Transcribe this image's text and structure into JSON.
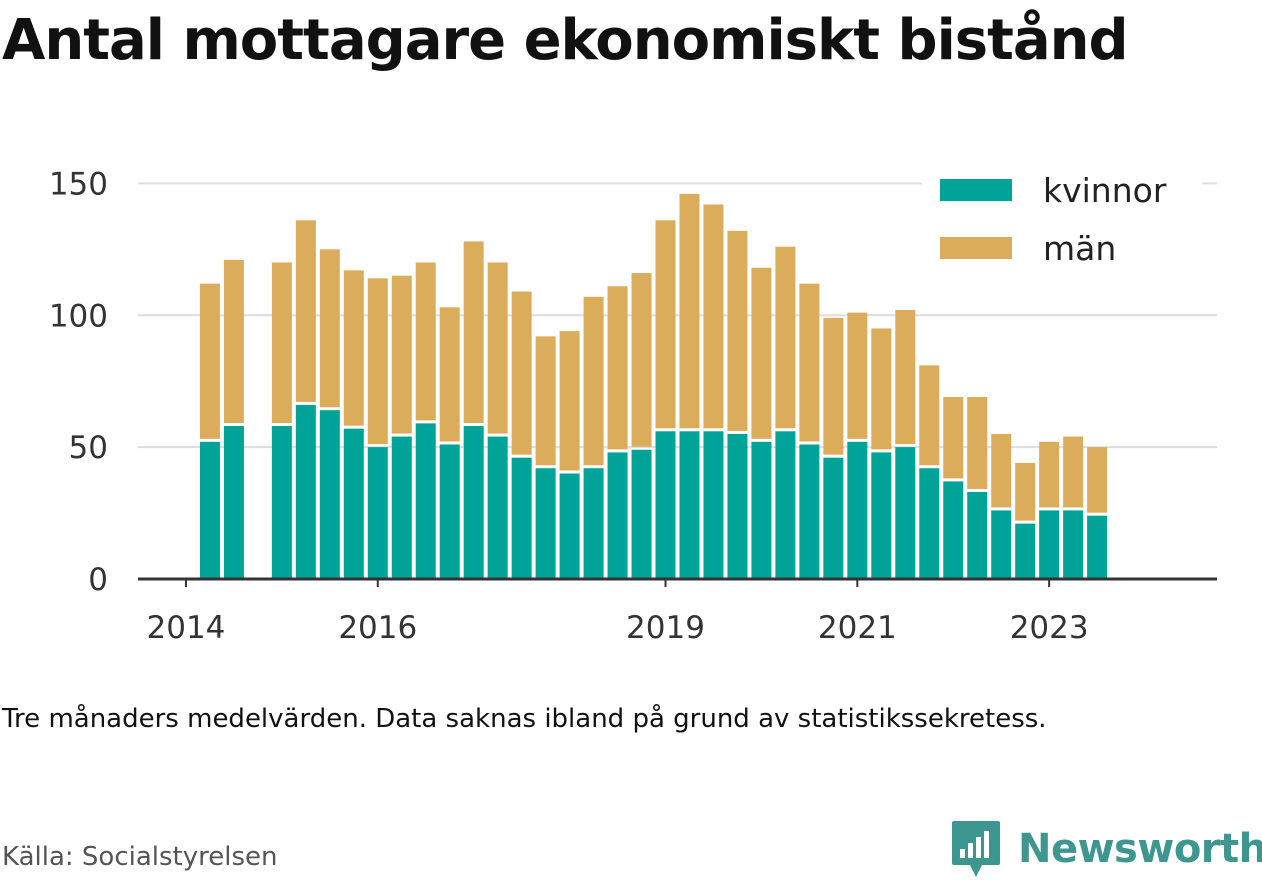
{
  "title": "Antal mottagare ekonomiskt bistånd",
  "note": "Tre månaders medelvärden. Data saknas ibland på grund av statistikssekretess.",
  "source": "Källa: Socialstyrelsen",
  "brand": "Newsworthy",
  "colors": {
    "kvinnor": "#00a398",
    "man": "#dbad5b",
    "grid": "#dddddd",
    "axis": "#333333"
  },
  "chart_data": {
    "type": "bar",
    "stacked": true,
    "ylim": [
      0,
      160
    ],
    "yticks": [
      0,
      50,
      100,
      150
    ],
    "xlim": [
      2013.5,
      2024.75
    ],
    "xticks": [
      2014,
      2016,
      2019,
      2021,
      2023
    ],
    "legend": {
      "position": "top-right"
    },
    "x": [
      2014.25,
      2014.5,
      2015.0,
      2015.25,
      2015.5,
      2015.75,
      2016.0,
      2016.25,
      2016.5,
      2016.75,
      2017.0,
      2017.25,
      2017.5,
      2017.75,
      2018.0,
      2018.25,
      2018.5,
      2018.75,
      2019.0,
      2019.25,
      2019.5,
      2019.75,
      2020.0,
      2020.25,
      2020.5,
      2020.75,
      2021.0,
      2021.25,
      2021.5,
      2021.75,
      2022.0,
      2022.25,
      2022.5,
      2022.75,
      2023.0,
      2023.25,
      2023.5
    ],
    "series": [
      {
        "name": "kvinnor",
        "values": [
          52,
          58,
          58,
          66,
          64,
          57,
          50,
          54,
          59,
          51,
          58,
          54,
          46,
          42,
          40,
          42,
          48,
          49,
          56,
          56,
          56,
          55,
          52,
          56,
          51,
          46,
          52,
          48,
          50,
          42,
          37,
          33,
          26,
          21,
          26,
          26,
          24
        ]
      },
      {
        "name": "män",
        "values": [
          60,
          63,
          62,
          70,
          61,
          60,
          64,
          61,
          61,
          52,
          70,
          66,
          63,
          50,
          54,
          65,
          63,
          67,
          80,
          90,
          86,
          77,
          66,
          70,
          61,
          53,
          49,
          47,
          52,
          39,
          32,
          36,
          29,
          23,
          26,
          28,
          26
        ]
      }
    ]
  }
}
